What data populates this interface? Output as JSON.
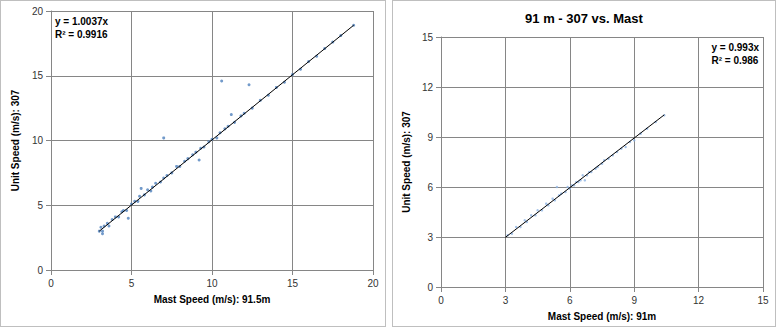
{
  "chart_data": [
    {
      "type": "scatter",
      "x_label": "Mast Speed (m/s): 91.5m",
      "y_label": "Unit Speed (m/s): 307",
      "annotations": [
        "y = 1.0037x",
        "R² = 0.9916"
      ],
      "xlim": [
        0,
        20
      ],
      "xticks": [
        0,
        5,
        10,
        15,
        20
      ],
      "ylim": [
        0,
        20
      ],
      "yticks": [
        0,
        5,
        10,
        15,
        20
      ],
      "grid": true,
      "series": [
        {
          "type": "scatter",
          "color": "#4f81bd",
          "marker": "circle",
          "x": [
            3.0,
            3.1,
            3.2,
            3.3,
            3.5,
            3.6,
            3.8,
            4.0,
            4.2,
            4.4,
            4.5,
            4.7,
            4.8,
            5.0,
            5.2,
            5.4,
            5.5,
            5.8,
            6.0,
            6.2,
            6.3,
            6.5,
            6.8,
            7.0,
            7.0,
            7.2,
            7.5,
            7.8,
            8.0,
            8.3,
            8.5,
            8.8,
            9.0,
            9.3,
            9.5,
            9.8,
            10.0,
            10.3,
            10.5,
            10.6,
            10.8,
            11.0,
            11.4,
            11.8,
            12.0,
            12.3,
            12.5,
            13.0,
            13.5,
            14.0,
            14.5,
            15.0,
            15.5,
            16.0,
            16.5,
            17.0,
            17.5,
            18.0,
            18.8,
            3.2,
            5.6,
            9.2,
            11.2
          ],
          "values": [
            3.0,
            3.3,
            3.0,
            3.4,
            3.6,
            3.4,
            3.9,
            4.1,
            4.1,
            4.5,
            4.6,
            4.6,
            4.0,
            5.1,
            5.3,
            5.3,
            5.7,
            5.8,
            6.2,
            6.1,
            6.4,
            6.7,
            6.8,
            7.1,
            10.2,
            7.3,
            7.5,
            8.0,
            8.0,
            8.4,
            8.6,
            8.9,
            9.1,
            9.4,
            9.5,
            9.9,
            10.1,
            10.2,
            10.6,
            14.6,
            10.9,
            11.1,
            11.4,
            11.9,
            12.1,
            14.3,
            12.5,
            13.1,
            13.5,
            14.1,
            14.5,
            15.1,
            15.5,
            16.1,
            16.5,
            17.1,
            17.6,
            18.1,
            18.9,
            2.8,
            6.3,
            8.5,
            12.0
          ]
        },
        {
          "type": "line",
          "color": "#000000",
          "x": [
            3.0,
            18.8
          ],
          "values": [
            3.0,
            18.9
          ]
        }
      ]
    },
    {
      "type": "scatter",
      "title": "91 m - 307 vs. Mast",
      "x_label": "Mast Speed (m/s): 91m",
      "y_label": "Unit Speed (m/s): 307",
      "annotations": [
        "y = 0.993x",
        "R² = 0.986"
      ],
      "xlim": [
        0,
        15
      ],
      "xticks": [
        0,
        3,
        6,
        9,
        12,
        15
      ],
      "ylim": [
        0,
        15
      ],
      "yticks": [
        0,
        3,
        6,
        9,
        12,
        15
      ],
      "grid": true,
      "series": [
        {
          "type": "scatter",
          "color": "#8eb4e3",
          "marker": "circle",
          "x": [
            3.1,
            3.3,
            3.5,
            3.7,
            3.9,
            4.0,
            4.2,
            4.4,
            4.5,
            4.7,
            4.9,
            5.0,
            5.2,
            5.3,
            5.5,
            5.6,
            5.8,
            5.9,
            6.0,
            6.1,
            6.2,
            6.3,
            6.4,
            6.5,
            6.6,
            6.8,
            6.9,
            7.0,
            7.2,
            7.3,
            7.5,
            7.6,
            7.8,
            8.0,
            8.2,
            8.4,
            8.6,
            8.8,
            9.0,
            9.3,
            9.6,
            10.0,
            10.4,
            5.4,
            6.7
          ],
          "values": [
            3.1,
            3.2,
            3.6,
            3.6,
            4.0,
            3.9,
            4.3,
            4.3,
            4.6,
            4.6,
            5.0,
            4.9,
            5.3,
            5.2,
            5.5,
            5.6,
            5.7,
            6.0,
            5.9,
            6.1,
            6.1,
            6.3,
            6.3,
            6.4,
            6.7,
            6.7,
            6.9,
            6.9,
            7.1,
            7.2,
            7.4,
            7.6,
            7.7,
            7.9,
            8.1,
            8.3,
            8.4,
            8.7,
            8.8,
            9.2,
            9.5,
            9.9,
            10.3,
            6.0,
            6.4
          ]
        },
        {
          "type": "line",
          "color": "#000000",
          "x": [
            3.0,
            10.4
          ],
          "values": [
            2.98,
            10.33
          ]
        }
      ]
    }
  ]
}
